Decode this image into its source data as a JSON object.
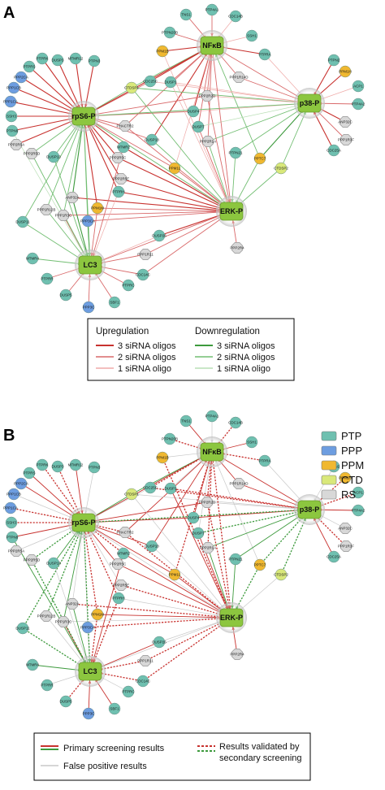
{
  "panels": [
    "A",
    "B"
  ],
  "colors": {
    "PTP": "#6fc0b0",
    "PPP": "#6d9de0",
    "PPM": "#f0b830",
    "CTD": "#d9e87a",
    "RS": "#d8d8d8",
    "hub": "#8cc63f",
    "up3": "#c8322f",
    "up2": "#d9696a",
    "up1": "#efaaa8",
    "down3": "#3d9a3d",
    "down2": "#72be72",
    "down1": "#b9dfb5",
    "falsePositive": "#c9c9c9"
  },
  "hubs": [
    {
      "id": "rps6",
      "label": "rpS6-P"
    },
    {
      "id": "nfkb",
      "label": "NFκB"
    },
    {
      "id": "p38",
      "label": "p38-P"
    },
    {
      "id": "erk",
      "label": "ERK-P"
    },
    {
      "id": "lc3",
      "label": "LC3"
    }
  ],
  "nodes": [
    {
      "label": "TNS1",
      "cat": "PTP"
    },
    {
      "label": "PTP4A1",
      "cat": "PTP"
    },
    {
      "label": "CDC14B",
      "cat": "PTP"
    },
    {
      "label": "PTPN20B",
      "cat": "PTP"
    },
    {
      "label": "SSH1",
      "cat": "PTP"
    },
    {
      "label": "PPM1B",
      "cat": "PPM"
    },
    {
      "label": "PTPRA",
      "cat": "PTP"
    },
    {
      "label": "DUSP3",
      "cat": "PTP"
    },
    {
      "label": "MTMR12",
      "cat": "PTP"
    },
    {
      "label": "PTPN3",
      "cat": "PTP"
    },
    {
      "label": "PTPRK",
      "cat": "PTP"
    },
    {
      "label": "PTPRS",
      "cat": "PTP"
    },
    {
      "label": "PPP2CA",
      "cat": "PPP"
    },
    {
      "label": "PPP1CB",
      "cat": "PPP"
    },
    {
      "label": "PPP1CA",
      "cat": "PPP"
    },
    {
      "label": "SSH3",
      "cat": "PTP"
    },
    {
      "label": "PTPN9",
      "cat": "PTP"
    },
    {
      "label": "PPP2R5A",
      "cat": "RS"
    },
    {
      "label": "PPP2R5D",
      "cat": "RS"
    },
    {
      "label": "DUSP13",
      "cat": "PTP"
    },
    {
      "label": "CTDSP1",
      "cat": "CTD"
    },
    {
      "label": "CDC25C",
      "cat": "PTP"
    },
    {
      "label": "DUSP1",
      "cat": "PTP"
    },
    {
      "label": "PPP1R14D",
      "cat": "RS"
    },
    {
      "label": "PPP2R2D",
      "cat": "RS"
    },
    {
      "label": "DUSP4",
      "cat": "PTP"
    },
    {
      "label": "DUSP7",
      "cat": "PTP"
    },
    {
      "label": "PPM1H",
      "cat": "PPM"
    },
    {
      "label": "PTPN2",
      "cat": "PTP"
    },
    {
      "label": "ACP1",
      "cat": "PTP"
    },
    {
      "label": "PTP4A2",
      "cat": "PTP"
    },
    {
      "label": "ANP32C",
      "cat": "RS"
    },
    {
      "label": "PPP1R3F",
      "cat": "RS"
    },
    {
      "label": "CDC25A",
      "cat": "PTP"
    },
    {
      "label": "PHACTR2",
      "cat": "RS"
    },
    {
      "label": "DUSP18",
      "cat": "PTP"
    },
    {
      "label": "PPP2R1A",
      "cat": "RS"
    },
    {
      "label": "PPP2R5C",
      "cat": "RS"
    },
    {
      "label": "MTMR2",
      "cat": "PTP"
    },
    {
      "label": "PPP2R5E",
      "cat": "RS"
    },
    {
      "label": "PPM1L",
      "cat": "PPM"
    },
    {
      "label": "PTPN21",
      "cat": "PTP"
    },
    {
      "label": "PPTC7",
      "cat": "PPM"
    },
    {
      "label": "CTDSP2",
      "cat": "CTD"
    },
    {
      "label": "PTPRH",
      "cat": "PTP"
    },
    {
      "label": "ANP32A",
      "cat": "RS"
    },
    {
      "label": "PPM1M",
      "cat": "PPM"
    },
    {
      "label": "PPP1R12B",
      "cat": "RS"
    },
    {
      "label": "PPP1R3C",
      "cat": "RS"
    },
    {
      "label": "PPP3CA",
      "cat": "PPP"
    },
    {
      "label": "DUSP11",
      "cat": "PTP"
    },
    {
      "label": "DUSP26",
      "cat": "PTP"
    },
    {
      "label": "PPP1R11",
      "cat": "RS"
    },
    {
      "label": "PPP2R4",
      "cat": "RS"
    },
    {
      "label": "MTMR4",
      "cat": "PTP"
    },
    {
      "label": "PTPRR",
      "cat": "PTP"
    },
    {
      "label": "DUSP5",
      "cat": "PTP"
    },
    {
      "label": "PPP3C",
      "cat": "PPP"
    },
    {
      "label": "SBF1",
      "cat": "PTP"
    },
    {
      "label": "PTPRC",
      "cat": "PTP"
    },
    {
      "label": "CDC14C",
      "cat": "PTP"
    }
  ],
  "legendA": {
    "up_title": "Upregulation",
    "down_title": "Downregulation",
    "up": [
      "3 siRNA oligos",
      "2 siRNA oligos",
      "1 siRNA oligo"
    ],
    "down": [
      "3 siRNA oligos",
      "2 siRNA oligos",
      "1 siRNA oligo"
    ]
  },
  "legendB": {
    "primary": "Primary screening results",
    "false_positive": "False positive results",
    "validated_line1": "Results validated by",
    "validated_line2": "secondary screening"
  },
  "categories": [
    "PTP",
    "PPP",
    "PPM",
    "CTD",
    "RS"
  ]
}
